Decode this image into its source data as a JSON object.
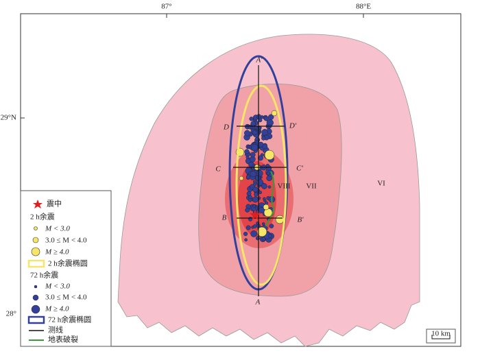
{
  "map": {
    "lon_labels": [
      "87°",
      "88°E"
    ],
    "lat_labels": [
      "29°N",
      "28°"
    ],
    "profile_labels": [
      "A'",
      "A",
      "D",
      "D'",
      "C",
      "C'",
      "B",
      "B'"
    ],
    "intensity_labels": [
      "VIII",
      "VII",
      "VI"
    ],
    "legend": [
      "震中",
      "2 h余震",
      "M < 3.0",
      "3.0 ≤ M < 4.0",
      "M ≥ 4.0",
      "2 h余震椭圆",
      "72 h余震",
      "M < 3.0",
      "3.0 ≤ M < 4.0",
      "M ≥ 4.0",
      "72 h余震椭圆",
      "测线",
      "地表破裂"
    ],
    "scale": "10 km"
  }
}
